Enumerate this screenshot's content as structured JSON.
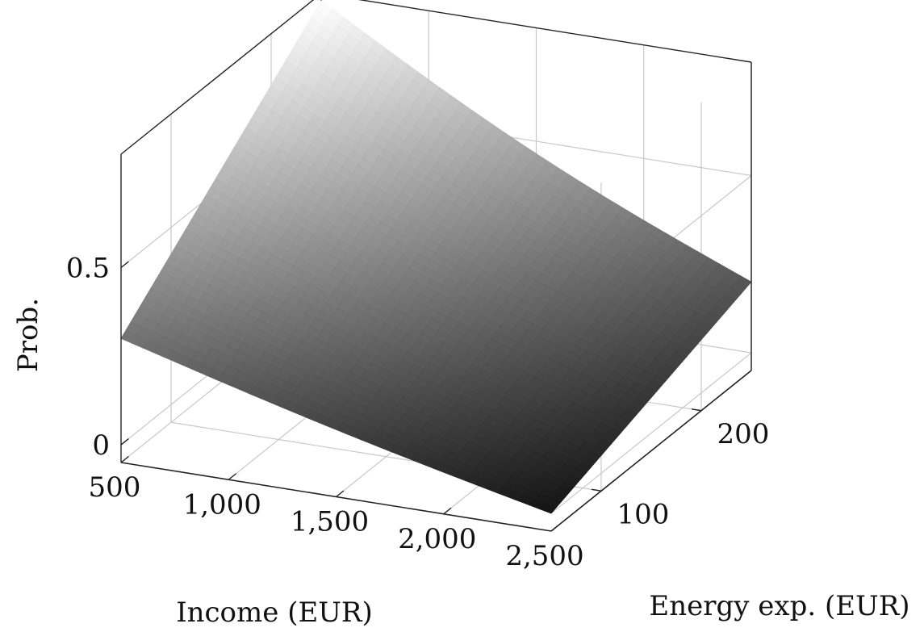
{
  "chart_data": {
    "type": "surface",
    "xlabel": "Income (EUR)",
    "ylabel": "Energy exp. (EUR)",
    "zlabel": "Prob.",
    "x_ticks": [
      500,
      1000,
      1500,
      2000,
      2500
    ],
    "x_tick_labels": [
      "500",
      "1,000",
      "1,500",
      "2,000",
      "2,500"
    ],
    "y_ticks": [
      100,
      200
    ],
    "y_tick_labels": [
      "100",
      "200"
    ],
    "z_ticks": [
      0,
      0.5
    ],
    "z_tick_labels": [
      "0",
      "0.5"
    ],
    "xlim": [
      500,
      2500
    ],
    "ylim": [
      50,
      250
    ],
    "zlim": [
      -0.05,
      0.82
    ],
    "grid": true,
    "colormap": "grayscale-by-height",
    "corner_values": [
      {
        "x": 500,
        "y": 50,
        "z": 0.3
      },
      {
        "x": 500,
        "y": 250,
        "z": 0.8
      },
      {
        "x": 2500,
        "y": 50,
        "z": 0.0
      },
      {
        "x": 2500,
        "y": 250,
        "z": 0.2
      }
    ]
  }
}
